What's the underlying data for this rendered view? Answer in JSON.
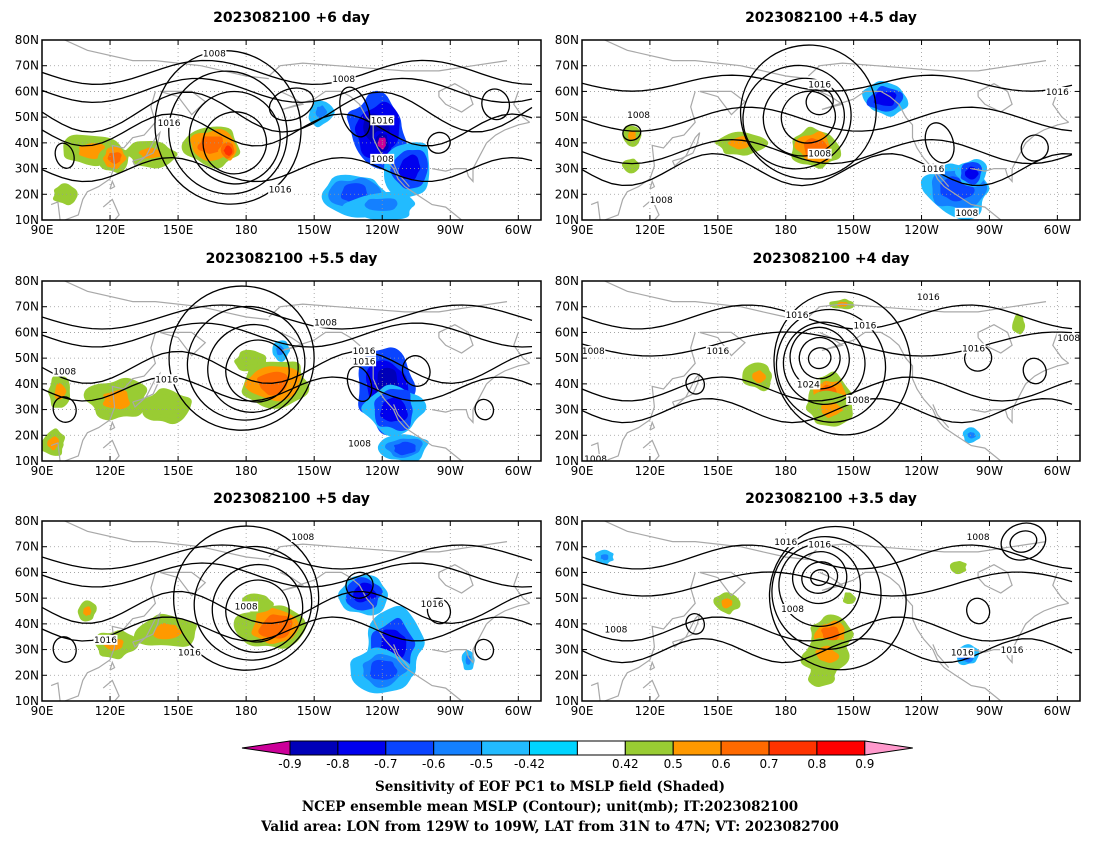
{
  "panels": [
    {
      "title": "2023082100 +6 day",
      "contour_labels": [
        "1008",
        "1008",
        "1016",
        "1016",
        "1008",
        "1016"
      ],
      "shade": [
        {
          "lon": 112,
          "lat": 37,
          "v": 0.6,
          "sx": 9,
          "sy": 5
        },
        {
          "lon": 122,
          "lat": 34,
          "v": 0.7,
          "sx": 5,
          "sy": 4
        },
        {
          "lon": 138,
          "lat": 36,
          "v": 0.6,
          "sx": 8,
          "sy": 4
        },
        {
          "lon": 100,
          "lat": 20,
          "v": 0.5,
          "sx": 4,
          "sy": 3
        },
        {
          "lon": 165,
          "lat": 39,
          "v": 0.7,
          "sx": 10,
          "sy": 6
        },
        {
          "lon": 172,
          "lat": 37,
          "v": 0.8,
          "sx": 3,
          "sy": 3
        },
        {
          "lon": 213,
          "lat": 52,
          "v": -0.5,
          "sx": 4,
          "sy": 4
        },
        {
          "lon": 238,
          "lat": 45,
          "v": -0.8,
          "sx": 10,
          "sy": 10
        },
        {
          "lon": 240,
          "lat": 40,
          "v": -0.9,
          "sx": 3,
          "sy": 4
        },
        {
          "lon": 252,
          "lat": 30,
          "v": -0.7,
          "sx": 8,
          "sy": 8
        },
        {
          "lon": 228,
          "lat": 20,
          "v": -0.6,
          "sx": 10,
          "sy": 6
        },
        {
          "lon": 240,
          "lat": 16,
          "v": -0.5,
          "sx": 12,
          "sy": 4
        }
      ]
    },
    {
      "title": "2023082100 +4.5 day",
      "contour_labels": [
        "1008",
        "1016",
        "1008",
        "1016",
        "1016",
        "1008",
        "1008"
      ],
      "shade": [
        {
          "lon": 112,
          "lat": 43,
          "v": 0.6,
          "sx": 3,
          "sy": 3
        },
        {
          "lon": 112,
          "lat": 31,
          "v": 0.5,
          "sx": 3,
          "sy": 2
        },
        {
          "lon": 160,
          "lat": 40,
          "v": 0.6,
          "sx": 8,
          "sy": 4
        },
        {
          "lon": 193,
          "lat": 38,
          "v": 0.7,
          "sx": 8,
          "sy": 6
        },
        {
          "lon": 224,
          "lat": 57,
          "v": -0.7,
          "sx": 8,
          "sy": 5
        },
        {
          "lon": 255,
          "lat": 22,
          "v": -0.6,
          "sx": 12,
          "sy": 8
        },
        {
          "lon": 262,
          "lat": 28,
          "v": -0.7,
          "sx": 5,
          "sy": 4
        }
      ]
    },
    {
      "title": "2023082100 +5.5 day",
      "contour_labels": [
        "1008",
        "1008",
        "1016",
        "1016",
        "1016",
        "1008"
      ],
      "shade": [
        {
          "lon": 98,
          "lat": 37,
          "v": 0.6,
          "sx": 4,
          "sy": 5
        },
        {
          "lon": 95,
          "lat": 17,
          "v": 0.6,
          "sx": 4,
          "sy": 4
        },
        {
          "lon": 123,
          "lat": 34,
          "v": 0.6,
          "sx": 10,
          "sy": 6
        },
        {
          "lon": 145,
          "lat": 31,
          "v": 0.5,
          "sx": 8,
          "sy": 5
        },
        {
          "lon": 192,
          "lat": 40,
          "v": 0.7,
          "sx": 12,
          "sy": 7
        },
        {
          "lon": 182,
          "lat": 49,
          "v": 0.5,
          "sx": 5,
          "sy": 3
        },
        {
          "lon": 195,
          "lat": 53,
          "v": -0.5,
          "sx": 3,
          "sy": 3
        },
        {
          "lon": 242,
          "lat": 38,
          "v": -0.8,
          "sx": 9,
          "sy": 12
        },
        {
          "lon": 245,
          "lat": 30,
          "v": -0.7,
          "sx": 10,
          "sy": 8
        },
        {
          "lon": 250,
          "lat": 15,
          "v": -0.6,
          "sx": 8,
          "sy": 4
        }
      ]
    },
    {
      "title": "2023082100 +4 day",
      "contour_labels": [
        "1008",
        "1016",
        "1016",
        "1016",
        "1016",
        "1016",
        "1008",
        "1024",
        "1008",
        "1008"
      ],
      "shade": [
        {
          "lon": 168,
          "lat": 43,
          "v": 0.6,
          "sx": 5,
          "sy": 4
        },
        {
          "lon": 199,
          "lat": 35,
          "v": 0.7,
          "sx": 7,
          "sy": 7
        },
        {
          "lon": 200,
          "lat": 30,
          "v": 0.6,
          "sx": 8,
          "sy": 5
        },
        {
          "lon": 205,
          "lat": 71,
          "v": 0.6,
          "sx": 4,
          "sy": 1.5
        },
        {
          "lon": 283,
          "lat": 63,
          "v": 0.5,
          "sx": 2,
          "sy": 3
        },
        {
          "lon": 262,
          "lat": 20,
          "v": -0.5,
          "sx": 3,
          "sy": 2
        }
      ]
    },
    {
      "title": "2023082100 +5 day",
      "contour_labels": [
        "1016",
        "1016",
        "1008",
        "1008",
        "1016"
      ],
      "shade": [
        {
          "lon": 110,
          "lat": 45,
          "v": 0.6,
          "sx": 3,
          "sy": 3
        },
        {
          "lon": 122,
          "lat": 32,
          "v": 0.6,
          "sx": 7,
          "sy": 4
        },
        {
          "lon": 145,
          "lat": 37,
          "v": 0.6,
          "sx": 10,
          "sy": 5
        },
        {
          "lon": 193,
          "lat": 39,
          "v": 0.7,
          "sx": 12,
          "sy": 7
        },
        {
          "lon": 185,
          "lat": 48,
          "v": 0.5,
          "sx": 5,
          "sy": 3
        },
        {
          "lon": 232,
          "lat": 52,
          "v": -0.7,
          "sx": 8,
          "sy": 6
        },
        {
          "lon": 245,
          "lat": 32,
          "v": -0.7,
          "sx": 10,
          "sy": 10
        },
        {
          "lon": 240,
          "lat": 22,
          "v": -0.6,
          "sx": 10,
          "sy": 6
        },
        {
          "lon": 278,
          "lat": 26,
          "v": -0.5,
          "sx": 2,
          "sy": 3
        }
      ]
    },
    {
      "title": "2023082100 +3.5 day",
      "contour_labels": [
        "1008",
        "1016",
        "1016",
        "1008",
        "1008",
        "1016",
        "1016"
      ],
      "shade": [
        {
          "lon": 154,
          "lat": 48,
          "v": 0.6,
          "sx": 4,
          "sy": 3
        },
        {
          "lon": 200,
          "lat": 36,
          "v": 0.7,
          "sx": 7,
          "sy": 5
        },
        {
          "lon": 198,
          "lat": 28,
          "v": 0.6,
          "sx": 8,
          "sy": 5
        },
        {
          "lon": 196,
          "lat": 20,
          "v": 0.5,
          "sx": 5,
          "sy": 3
        },
        {
          "lon": 208,
          "lat": 50,
          "v": 0.5,
          "sx": 2,
          "sy": 2
        },
        {
          "lon": 260,
          "lat": 28,
          "v": -0.6,
          "sx": 4,
          "sy": 3
        },
        {
          "lon": 100,
          "lat": 66,
          "v": -0.5,
          "sx": 3,
          "sy": 2
        },
        {
          "lon": 256,
          "lat": 62,
          "v": 0.5,
          "sx": 3,
          "sy": 2
        }
      ]
    }
  ],
  "lon_ticks": [
    "90E",
    "120E",
    "150E",
    "180",
    "150W",
    "120W",
    "90W",
    "60W"
  ],
  "lat_ticks": [
    "80N",
    "70N",
    "60N",
    "50N",
    "40N",
    "30N",
    "20N",
    "10N"
  ],
  "colorbar": {
    "colors": [
      "#cc0099",
      "#0000b8",
      "#0000ee",
      "#0a44ff",
      "#1480ff",
      "#22bbff",
      "#00d4ff",
      "#ffffff",
      "#99cc33",
      "#ff9900",
      "#ff6a00",
      "#ff3300",
      "#ff0000",
      "#ff99cc"
    ],
    "labels": [
      "-0.9",
      "-0.8",
      "-0.7",
      "-0.6",
      "-0.5",
      "-0.42",
      "0.42",
      "0.5",
      "0.6",
      "0.7",
      "0.8",
      "0.9"
    ]
  },
  "caption": [
    "Sensitivity of EOF PC1 to MSLP field (Shaded)",
    "NCEP ensemble mean MSLP (Contour); unit(mb); IT:2023082100",
    "Valid area: LON from 129W to 109W, LAT from 31N to 47N; VT: 2023082700"
  ]
}
